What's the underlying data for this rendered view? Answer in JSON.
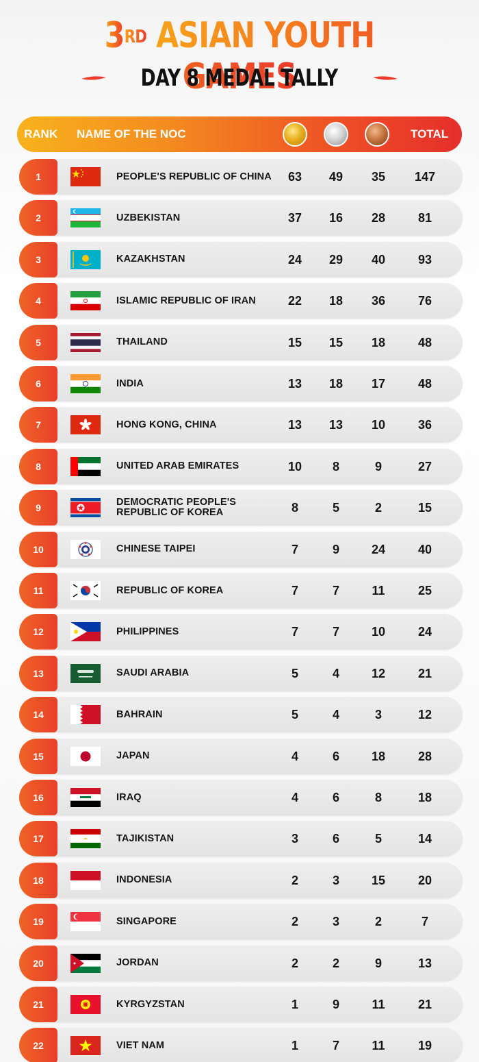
{
  "header": {
    "title_num": "3",
    "title_sup": "RD",
    "title_rest": "ASIAN YOUTH GAMES",
    "subtitle": "DAY 8 MEDAL TALLY"
  },
  "table_header": {
    "rank": "RANK",
    "name": "NAME OF THE NOC",
    "total": "TOTAL"
  },
  "colors": {
    "accent_orange": "#f47a1f",
    "accent_red": "#e52f2b",
    "gold": "#e7b01f",
    "silver": "#cfcfcf",
    "bronze": "#c2703a"
  },
  "rows": [
    {
      "rank": "1",
      "name": "PEOPLE'S REPUBLIC OF CHINA",
      "gold": "63",
      "silver": "49",
      "bronze": "35",
      "total": "147",
      "flag": "china-flag"
    },
    {
      "rank": "2",
      "name": "UZBEKISTAN",
      "gold": "37",
      "silver": "16",
      "bronze": "28",
      "total": "81",
      "flag": "uzbekistan-flag"
    },
    {
      "rank": "3",
      "name": "KAZAKHSTAN",
      "gold": "24",
      "silver": "29",
      "bronze": "40",
      "total": "93",
      "flag": "kazakhstan-flag"
    },
    {
      "rank": "4",
      "name": "ISLAMIC REPUBLIC OF IRAN",
      "gold": "22",
      "silver": "18",
      "bronze": "36",
      "total": "76",
      "flag": "iran-flag"
    },
    {
      "rank": "5",
      "name": "THAILAND",
      "gold": "15",
      "silver": "15",
      "bronze": "18",
      "total": "48",
      "flag": "thailand-flag"
    },
    {
      "rank": "6",
      "name": "INDIA",
      "gold": "13",
      "silver": "18",
      "bronze": "17",
      "total": "48",
      "flag": "india-flag"
    },
    {
      "rank": "7",
      "name": "HONG KONG, CHINA",
      "gold": "13",
      "silver": "13",
      "bronze": "10",
      "total": "36",
      "flag": "hong-kong-flag"
    },
    {
      "rank": "8",
      "name": "UNITED ARAB EMIRATES",
      "gold": "10",
      "silver": "8",
      "bronze": "9",
      "total": "27",
      "flag": "uae-flag"
    },
    {
      "rank": "9",
      "name": "DEMOCRATIC PEOPLE'S\nREPUBLIC OF KOREA",
      "gold": "8",
      "silver": "5",
      "bronze": "2",
      "total": "15",
      "flag": "north-korea-flag"
    },
    {
      "rank": "10",
      "name": "CHINESE TAIPEI",
      "gold": "7",
      "silver": "9",
      "bronze": "24",
      "total": "40",
      "flag": "chinese-taipei-flag"
    },
    {
      "rank": "11",
      "name": "REPUBLIC OF KOREA",
      "gold": "7",
      "silver": "7",
      "bronze": "11",
      "total": "25",
      "flag": "south-korea-flag"
    },
    {
      "rank": "12",
      "name": "PHILIPPINES",
      "gold": "7",
      "silver": "7",
      "bronze": "10",
      "total": "24",
      "flag": "philippines-flag"
    },
    {
      "rank": "13",
      "name": "SAUDI ARABIA",
      "gold": "5",
      "silver": "4",
      "bronze": "12",
      "total": "21",
      "flag": "saudi-arabia-flag"
    },
    {
      "rank": "14",
      "name": "BAHRAIN",
      "gold": "5",
      "silver": "4",
      "bronze": "3",
      "total": "12",
      "flag": "bahrain-flag"
    },
    {
      "rank": "15",
      "name": "JAPAN",
      "gold": "4",
      "silver": "6",
      "bronze": "18",
      "total": "28",
      "flag": "japan-flag"
    },
    {
      "rank": "16",
      "name": "IRAQ",
      "gold": "4",
      "silver": "6",
      "bronze": "8",
      "total": "18",
      "flag": "iraq-flag"
    },
    {
      "rank": "17",
      "name": "TAJIKISTAN",
      "gold": "3",
      "silver": "6",
      "bronze": "5",
      "total": "14",
      "flag": "tajikistan-flag"
    },
    {
      "rank": "18",
      "name": "INDONESIA",
      "gold": "2",
      "silver": "3",
      "bronze": "15",
      "total": "20",
      "flag": "indonesia-flag"
    },
    {
      "rank": "19",
      "name": "SINGAPORE",
      "gold": "2",
      "silver": "3",
      "bronze": "2",
      "total": "7",
      "flag": "singapore-flag"
    },
    {
      "rank": "20",
      "name": "JORDAN",
      "gold": "2",
      "silver": "2",
      "bronze": "9",
      "total": "13",
      "flag": "jordan-flag"
    },
    {
      "rank": "21",
      "name": "KYRGYZSTAN",
      "gold": "1",
      "silver": "9",
      "bronze": "11",
      "total": "21",
      "flag": "kyrgyzstan-flag"
    },
    {
      "rank": "22",
      "name": "VIET NAM",
      "gold": "1",
      "silver": "7",
      "bronze": "11",
      "total": "19",
      "flag": "vietnam-flag"
    }
  ]
}
